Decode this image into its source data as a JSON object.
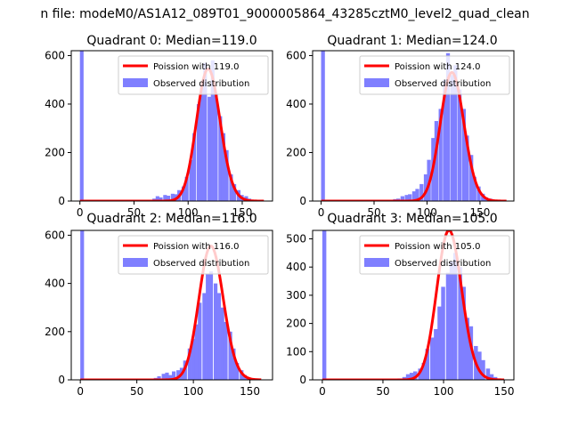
{
  "chart_data": {
    "suptitle": "n file: modeM0/AS1A12_089T01_9000005864_43285cztM0_level2_quad_clean",
    "colors": {
      "hist": "#7f7fff",
      "poisson": "#ff0000"
    },
    "legend_placement": "upper right",
    "panels": [
      {
        "type": "histogram+line",
        "title": "Quadrant 0: Median=119.0",
        "legend": [
          "Poission with 119.0",
          "Observed distribution"
        ],
        "median": 119.0,
        "xlim": [
          -8,
          178
        ],
        "ylim": [
          0,
          620
        ],
        "xticks": [
          0,
          50,
          100,
          150
        ],
        "yticks": [
          0,
          200,
          400,
          600
        ],
        "bin_width": 3.4,
        "bins": [
          [
            0,
            620
          ],
          [
            60,
            3
          ],
          [
            63,
            5
          ],
          [
            67,
            10
          ],
          [
            70,
            20
          ],
          [
            73,
            15
          ],
          [
            77,
            25
          ],
          [
            80,
            22
          ],
          [
            84,
            30
          ],
          [
            87,
            28
          ],
          [
            90,
            45
          ],
          [
            94,
            60
          ],
          [
            97,
            100
          ],
          [
            101,
            170
          ],
          [
            104,
            280
          ],
          [
            108,
            400
          ],
          [
            111,
            480
          ],
          [
            114,
            570
          ],
          [
            118,
            430
          ],
          [
            121,
            580
          ],
          [
            124,
            440
          ],
          [
            128,
            350
          ],
          [
            131,
            280
          ],
          [
            134,
            210
          ],
          [
            138,
            110
          ],
          [
            141,
            70
          ],
          [
            145,
            45
          ],
          [
            148,
            25
          ],
          [
            152,
            20
          ],
          [
            155,
            10
          ],
          [
            158,
            5
          ]
        ],
        "poisson_peak": 545,
        "poisson_range": [
          0,
          170
        ]
      },
      {
        "type": "histogram+line",
        "title": "Quadrant 1: Median=124.0",
        "legend": [
          "Poission with 124.0",
          "Observed distribution"
        ],
        "median": 124.0,
        "xlim": [
          -8,
          182
        ],
        "ylim": [
          0,
          620
        ],
        "xticks": [
          0,
          50,
          100,
          150
        ],
        "yticks": [
          0,
          200,
          400,
          600
        ],
        "bin_width": 3.6,
        "bins": [
          [
            0,
            620
          ],
          [
            64,
            5
          ],
          [
            68,
            8
          ],
          [
            71,
            10
          ],
          [
            75,
            20
          ],
          [
            79,
            25
          ],
          [
            82,
            28
          ],
          [
            86,
            40
          ],
          [
            89,
            50
          ],
          [
            93,
            70
          ],
          [
            97,
            110
          ],
          [
            100,
            170
          ],
          [
            104,
            260
          ],
          [
            107,
            330
          ],
          [
            111,
            380
          ],
          [
            115,
            500
          ],
          [
            118,
            610
          ],
          [
            122,
            520
          ],
          [
            125,
            560
          ],
          [
            129,
            460
          ],
          [
            133,
            380
          ],
          [
            136,
            270
          ],
          [
            140,
            190
          ],
          [
            143,
            100
          ],
          [
            147,
            60
          ],
          [
            151,
            30
          ],
          [
            154,
            15
          ],
          [
            158,
            10
          ],
          [
            161,
            5
          ]
        ],
        "poisson_peak": 530,
        "poisson_range": [
          0,
          175
        ]
      },
      {
        "type": "histogram+line",
        "title": "Quadrant 2: Median=116.0",
        "legend": [
          "Poission with 116.0",
          "Observed distribution"
        ],
        "median": 116.0,
        "xlim": [
          -8,
          170
        ],
        "ylim": [
          0,
          620
        ],
        "xticks": [
          0,
          50,
          100,
          150
        ],
        "yticks": [
          0,
          200,
          400,
          600
        ],
        "bin_width": 3.3,
        "bins": [
          [
            0,
            620
          ],
          [
            62,
            5
          ],
          [
            65,
            8
          ],
          [
            68,
            15
          ],
          [
            72,
            25
          ],
          [
            75,
            30
          ],
          [
            78,
            20
          ],
          [
            81,
            35
          ],
          [
            85,
            40
          ],
          [
            88,
            50
          ],
          [
            91,
            80
          ],
          [
            95,
            130
          ],
          [
            98,
            170
          ],
          [
            101,
            230
          ],
          [
            104,
            320
          ],
          [
            108,
            360
          ],
          [
            111,
            440
          ],
          [
            114,
            450
          ],
          [
            118,
            400
          ],
          [
            121,
            360
          ],
          [
            124,
            300
          ],
          [
            127,
            240
          ],
          [
            131,
            200
          ],
          [
            134,
            130
          ],
          [
            137,
            70
          ],
          [
            141,
            40
          ],
          [
            144,
            20
          ],
          [
            147,
            10
          ],
          [
            150,
            5
          ]
        ],
        "poisson_peak": 555,
        "poisson_range": [
          0,
          160
        ]
      },
      {
        "type": "histogram+line",
        "title": "Quadrant 3: Median=105.0",
        "legend": [
          "Poission with 105.0",
          "Observed distribution"
        ],
        "median": 105.0,
        "xlim": [
          -8,
          158
        ],
        "ylim": [
          0,
          530
        ],
        "xticks": [
          0,
          50,
          100,
          150
        ],
        "yticks": [
          0,
          100,
          200,
          300,
          400,
          500
        ],
        "bin_width": 3.3,
        "bins": [
          [
            0,
            530
          ],
          [
            62,
            5
          ],
          [
            66,
            10
          ],
          [
            69,
            20
          ],
          [
            72,
            25
          ],
          [
            75,
            30
          ],
          [
            79,
            40
          ],
          [
            82,
            60
          ],
          [
            85,
            110
          ],
          [
            89,
            150
          ],
          [
            92,
            180
          ],
          [
            95,
            260
          ],
          [
            98,
            330
          ],
          [
            102,
            380
          ],
          [
            105,
            420
          ],
          [
            108,
            450
          ],
          [
            112,
            400
          ],
          [
            115,
            330
          ],
          [
            118,
            220
          ],
          [
            121,
            190
          ],
          [
            125,
            120
          ],
          [
            128,
            100
          ],
          [
            131,
            70
          ],
          [
            135,
            40
          ],
          [
            138,
            20
          ],
          [
            141,
            10
          ]
        ],
        "poisson_peak": 530,
        "poisson_range": [
          0,
          150
        ]
      }
    ]
  }
}
